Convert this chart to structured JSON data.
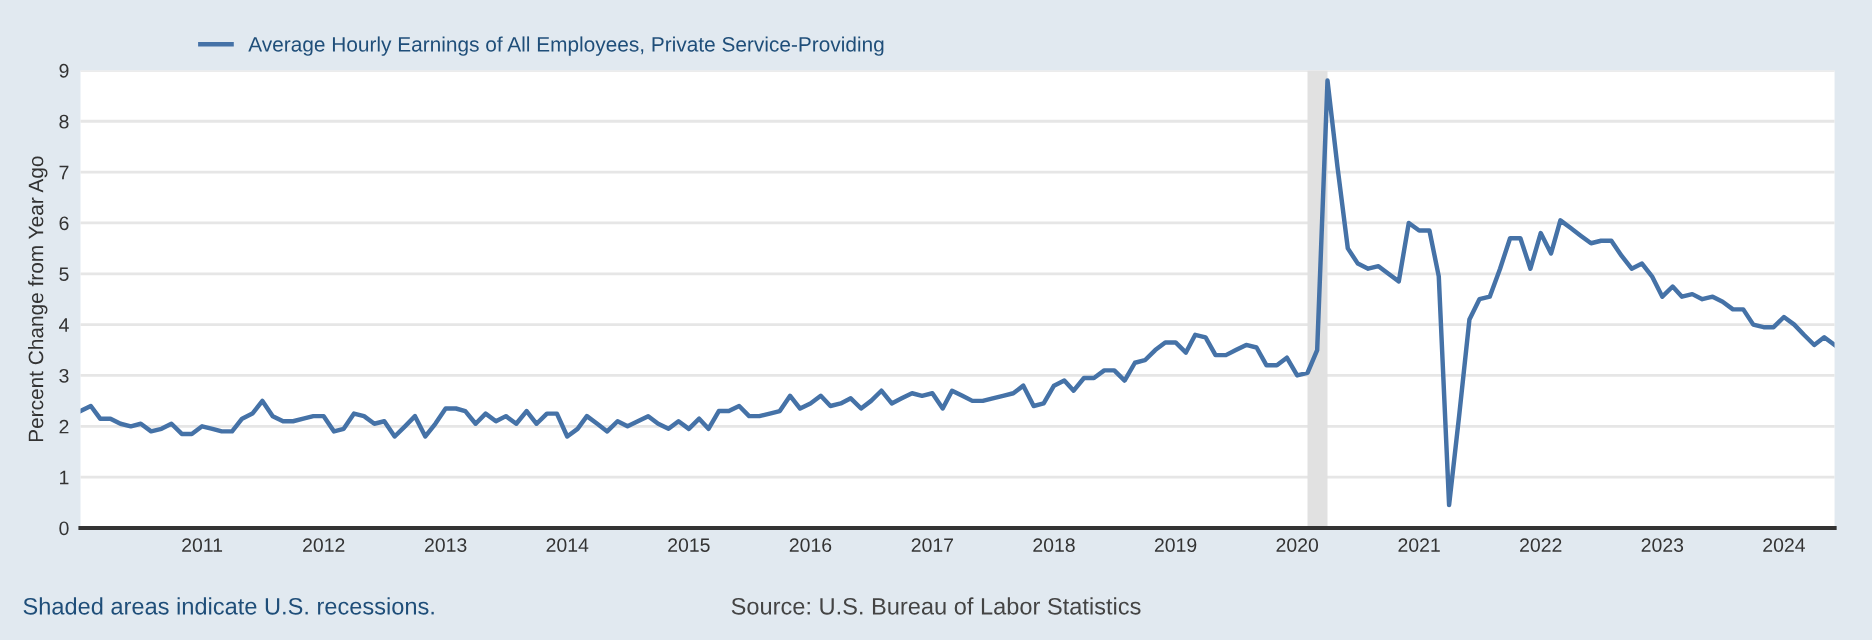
{
  "chart_data": {
    "type": "line",
    "ylabel": "Percent Change from Year Ago",
    "x": [
      "2010-01",
      "2010-02",
      "2010-03",
      "2010-04",
      "2010-05",
      "2010-06",
      "2010-07",
      "2010-08",
      "2010-09",
      "2010-10",
      "2010-11",
      "2010-12",
      "2011-01",
      "2011-02",
      "2011-03",
      "2011-04",
      "2011-05",
      "2011-06",
      "2011-07",
      "2011-08",
      "2011-09",
      "2011-10",
      "2011-11",
      "2011-12",
      "2012-01",
      "2012-02",
      "2012-03",
      "2012-04",
      "2012-05",
      "2012-06",
      "2012-07",
      "2012-08",
      "2012-09",
      "2012-10",
      "2012-11",
      "2012-12",
      "2013-01",
      "2013-02",
      "2013-03",
      "2013-04",
      "2013-05",
      "2013-06",
      "2013-07",
      "2013-08",
      "2013-09",
      "2013-10",
      "2013-11",
      "2013-12",
      "2014-01",
      "2014-02",
      "2014-03",
      "2014-04",
      "2014-05",
      "2014-06",
      "2014-07",
      "2014-08",
      "2014-09",
      "2014-10",
      "2014-11",
      "2014-12",
      "2015-01",
      "2015-02",
      "2015-03",
      "2015-04",
      "2015-05",
      "2015-06",
      "2015-07",
      "2015-08",
      "2015-09",
      "2015-10",
      "2015-11",
      "2015-12",
      "2016-01",
      "2016-02",
      "2016-03",
      "2016-04",
      "2016-05",
      "2016-06",
      "2016-07",
      "2016-08",
      "2016-09",
      "2016-10",
      "2016-11",
      "2016-12",
      "2017-01",
      "2017-02",
      "2017-03",
      "2017-04",
      "2017-05",
      "2017-06",
      "2017-07",
      "2017-08",
      "2017-09",
      "2017-10",
      "2017-11",
      "2017-12",
      "2018-01",
      "2018-02",
      "2018-03",
      "2018-04",
      "2018-05",
      "2018-06",
      "2018-07",
      "2018-08",
      "2018-09",
      "2018-10",
      "2018-11",
      "2018-12",
      "2019-01",
      "2019-02",
      "2019-03",
      "2019-04",
      "2019-05",
      "2019-06",
      "2019-07",
      "2019-08",
      "2019-09",
      "2019-10",
      "2019-11",
      "2019-12",
      "2020-01",
      "2020-02",
      "2020-03",
      "2020-04",
      "2020-05",
      "2020-06",
      "2020-07",
      "2020-08",
      "2020-09",
      "2020-10",
      "2020-11",
      "2020-12",
      "2021-01",
      "2021-02",
      "2021-03",
      "2021-04",
      "2021-05",
      "2021-06",
      "2021-07",
      "2021-08",
      "2021-09",
      "2021-10",
      "2021-11",
      "2021-12",
      "2022-01",
      "2022-02",
      "2022-03",
      "2022-04",
      "2022-05",
      "2022-06",
      "2022-07",
      "2022-08",
      "2022-09",
      "2022-10",
      "2022-11",
      "2022-12",
      "2023-01",
      "2023-02",
      "2023-03",
      "2023-04",
      "2023-05",
      "2023-06",
      "2023-07",
      "2023-08",
      "2023-09",
      "2023-10",
      "2023-11",
      "2023-12",
      "2024-01",
      "2024-02",
      "2024-03",
      "2024-04",
      "2024-05",
      "2024-06"
    ],
    "series": [
      {
        "name": "Average Hourly Earnings of All Employees, Private Service-Providing",
        "color": "#4572a7",
        "values": [
          2.3,
          2.4,
          2.15,
          2.15,
          2.05,
          2.0,
          2.05,
          1.9,
          1.95,
          2.05,
          1.85,
          1.85,
          2.0,
          1.95,
          1.9,
          1.9,
          2.15,
          2.25,
          2.5,
          2.2,
          2.1,
          2.1,
          2.15,
          2.2,
          2.2,
          1.9,
          1.95,
          2.25,
          2.2,
          2.05,
          2.1,
          1.8,
          2.0,
          2.2,
          1.8,
          2.05,
          2.35,
          2.35,
          2.3,
          2.05,
          2.25,
          2.1,
          2.2,
          2.05,
          2.3,
          2.05,
          2.25,
          2.25,
          1.8,
          1.95,
          2.2,
          2.05,
          1.9,
          2.1,
          2.0,
          2.1,
          2.2,
          2.05,
          1.95,
          2.1,
          1.95,
          2.15,
          1.95,
          2.3,
          2.3,
          2.4,
          2.2,
          2.2,
          2.25,
          2.3,
          2.6,
          2.35,
          2.45,
          2.6,
          2.4,
          2.45,
          2.55,
          2.35,
          2.5,
          2.7,
          2.45,
          2.55,
          2.65,
          2.6,
          2.65,
          2.35,
          2.7,
          2.6,
          2.5,
          2.5,
          2.55,
          2.6,
          2.65,
          2.8,
          2.4,
          2.45,
          2.8,
          2.9,
          2.7,
          2.95,
          2.95,
          3.1,
          3.1,
          2.9,
          3.25,
          3.3,
          3.5,
          3.65,
          3.65,
          3.45,
          3.8,
          3.75,
          3.4,
          3.4,
          3.5,
          3.6,
          3.55,
          3.2,
          3.2,
          3.35,
          3.0,
          3.05,
          3.5,
          8.8,
          7.1,
          5.5,
          5.2,
          5.1,
          5.15,
          5.0,
          4.85,
          6.0,
          5.85,
          5.85,
          4.95,
          0.45,
          2.2,
          4.1,
          4.5,
          4.55,
          5.1,
          5.7,
          5.7,
          5.1,
          5.8,
          5.4,
          6.05,
          5.9,
          5.75,
          5.6,
          5.65,
          5.65,
          5.35,
          5.1,
          5.2,
          4.95,
          4.55,
          4.75,
          4.55,
          4.6,
          4.5,
          4.55,
          4.45,
          4.3,
          4.3,
          4.0,
          3.95,
          3.95,
          4.15,
          4.0,
          3.8,
          3.6,
          3.75,
          3.6
        ]
      }
    ],
    "xlim": [
      "2010-01",
      "2024-06"
    ],
    "xticks": [
      {
        "value": "2011-01",
        "label": "2011"
      },
      {
        "value": "2012-01",
        "label": "2012"
      },
      {
        "value": "2013-01",
        "label": "2013"
      },
      {
        "value": "2014-01",
        "label": "2014"
      },
      {
        "value": "2015-01",
        "label": "2015"
      },
      {
        "value": "2016-01",
        "label": "2016"
      },
      {
        "value": "2017-01",
        "label": "2017"
      },
      {
        "value": "2018-01",
        "label": "2018"
      },
      {
        "value": "2019-01",
        "label": "2019"
      },
      {
        "value": "2020-01",
        "label": "2020"
      },
      {
        "value": "2021-01",
        "label": "2021"
      },
      {
        "value": "2022-01",
        "label": "2022"
      },
      {
        "value": "2023-01",
        "label": "2023"
      },
      {
        "value": "2024-01",
        "label": "2024"
      }
    ],
    "ylim": [
      0,
      9
    ],
    "yticks": [
      0,
      1,
      2,
      3,
      4,
      5,
      6,
      7,
      8,
      9
    ],
    "grid": "y",
    "legend": "top left",
    "bands": [
      {
        "axis": "x",
        "from": "2020-02",
        "to": "2020-04",
        "color": "#e1e1e1"
      }
    ],
    "annotations": [
      "Shaded areas indicate U.S. recessions.",
      "Source: U.S. Bureau of Labor Statistics"
    ]
  }
}
